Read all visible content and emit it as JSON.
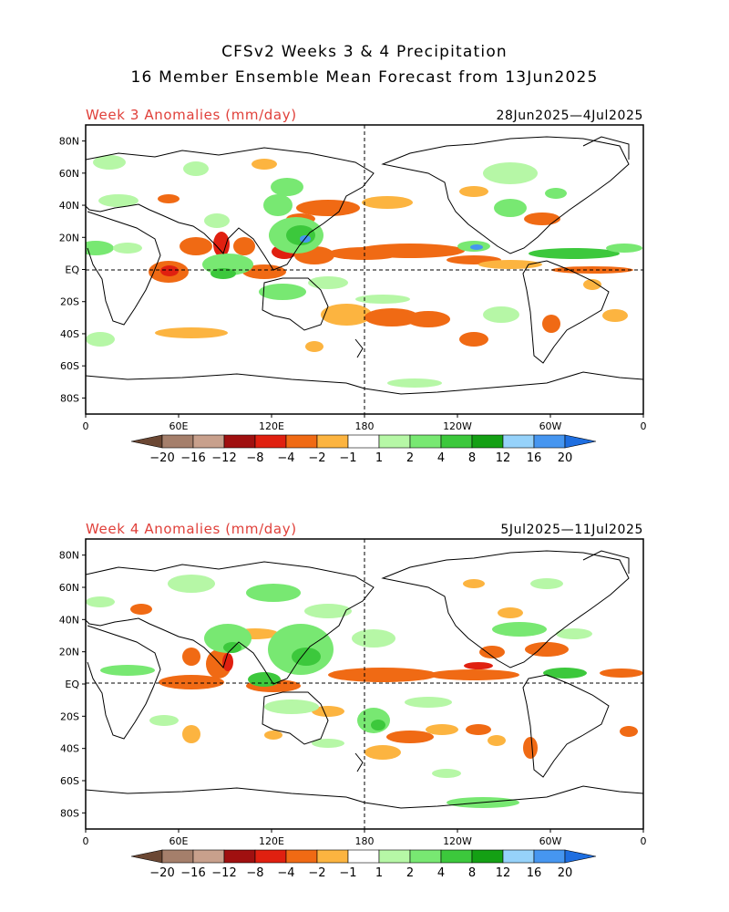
{
  "header": {
    "line1": "CFSv2 Weeks 3 & 4 Precipitation",
    "line2": "16 Member Ensemble Mean Forecast from 13Jun2025"
  },
  "panels": [
    {
      "label": "Week 3 Anomalies (mm/day)",
      "date_range": "28Jun2025—4Jul2025",
      "lat_ticks": [
        "80N",
        "60N",
        "40N",
        "20N",
        "EQ",
        "20S",
        "40S",
        "60S",
        "80S"
      ],
      "lon_ticks": [
        "0",
        "60E",
        "120E",
        "180",
        "120W",
        "60W",
        "0"
      ]
    },
    {
      "label": "Week 4 Anomalies (mm/day)",
      "date_range": "5Jul2025—11Jul2025",
      "lat_ticks": [
        "80N",
        "60N",
        "40N",
        "20N",
        "EQ",
        "20S",
        "40S",
        "60S",
        "80S"
      ],
      "lon_ticks": [
        "0",
        "60E",
        "120E",
        "180",
        "120W",
        "60W",
        "0"
      ]
    }
  ],
  "colorbar": {
    "labels": [
      "−20",
      "−16",
      "−12",
      "−8",
      "−4",
      "−2",
      "−1",
      "1",
      "2",
      "4",
      "8",
      "12",
      "16",
      "20"
    ],
    "colors": [
      "#6b4733",
      "#a57f6b",
      "#c8a08c",
      "#a01010",
      "#e02010",
      "#f06a14",
      "#fcb440",
      "#ffffff",
      "#b6f7a6",
      "#78e872",
      "#3cc83c",
      "#14a014",
      "#96d2fa",
      "#4696f0",
      "#1e6ee0"
    ]
  },
  "legend_colors": {
    "wet_light": "#b6f7a6",
    "wet_mid": "#78e872",
    "wet_strong": "#3cc83c",
    "wet_heavy": "#14a014",
    "wet_extreme": "#4696f0",
    "dry_light": "#fcb440",
    "dry_mid": "#f06a14",
    "dry_strong": "#e02010",
    "dry_heavy": "#a01010"
  }
}
